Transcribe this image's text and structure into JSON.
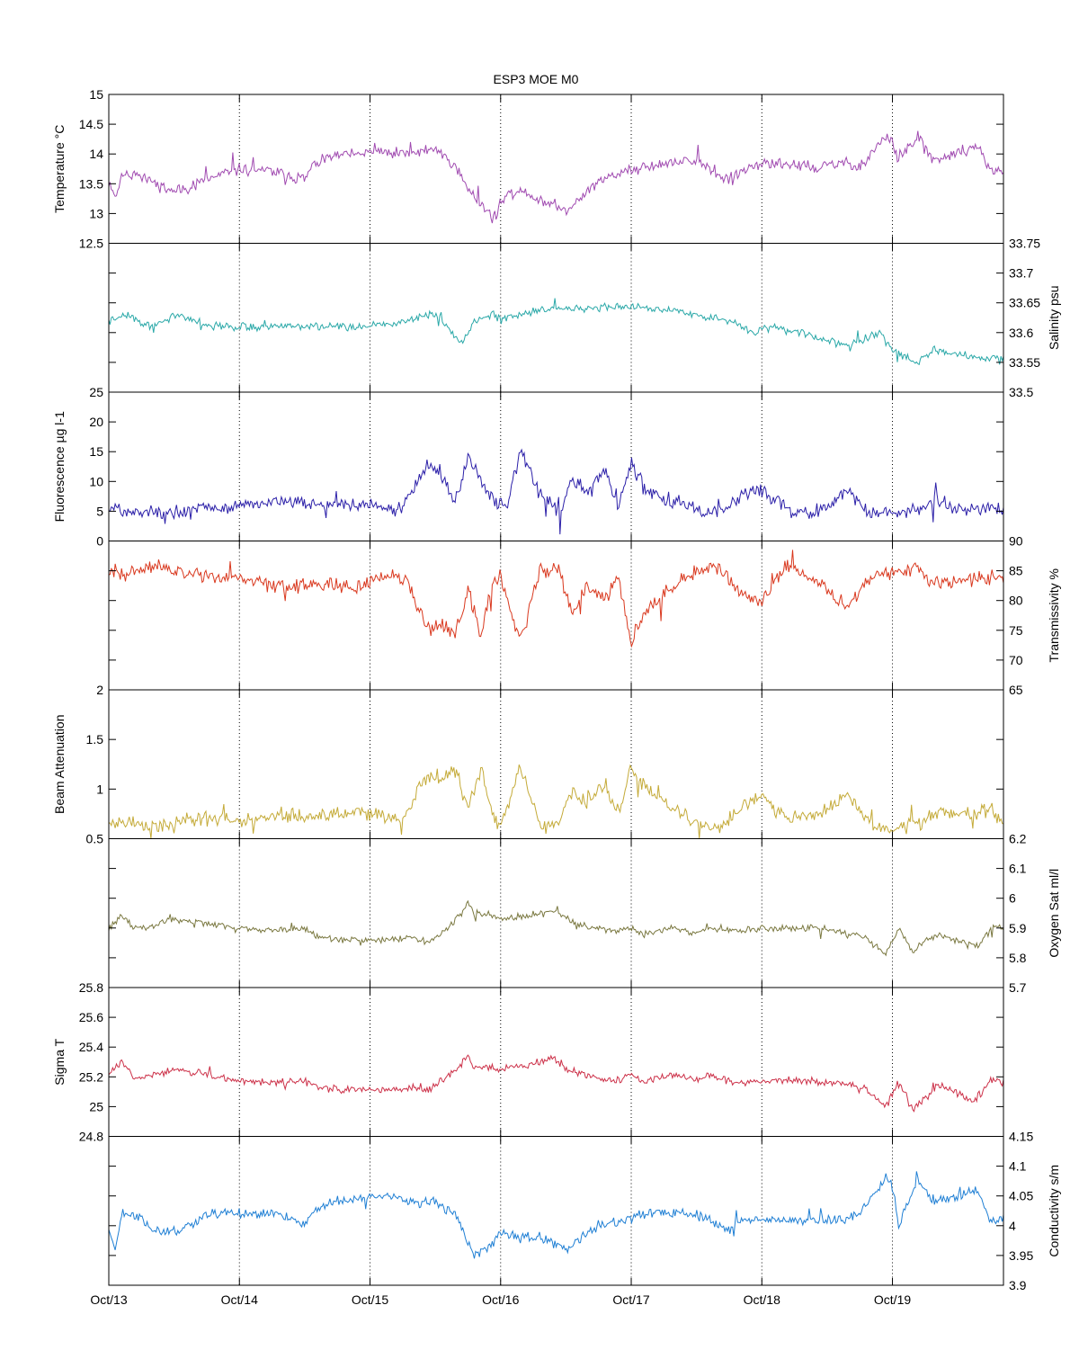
{
  "title": "ESP3 MOE   M0",
  "x_axis": {
    "ticks": [
      "Oct/13",
      "Oct/14",
      "Oct/15",
      "Oct/16",
      "Oct/17",
      "Oct/18",
      "Oct/19"
    ],
    "range_days": [
      0,
      6.85
    ]
  },
  "colors": {
    "temperature": "#a04ab0",
    "salinity": "#2aa8a8",
    "fluorescence": "#2b1fa8",
    "transmissivity": "#d9381e",
    "beam_attenuation": "#c4aa38",
    "oxygen": "#7a7840",
    "sigma_t": "#cc3048",
    "conductivity": "#1f7fd4"
  },
  "chart_data": [
    {
      "type": "line",
      "id": "temperature",
      "ylabel": "Temperature °C",
      "yaxis_side": "left",
      "ylim": [
        12.5,
        15
      ],
      "yticks": [
        "12.5",
        "13",
        "13.5",
        "14",
        "14.5",
        "15"
      ],
      "ytick_vals": [
        12.5,
        13,
        13.5,
        14,
        14.5,
        15
      ],
      "noise": 0.12,
      "seed": 11,
      "x": [
        0,
        0.05,
        0.1,
        0.2,
        0.35,
        0.5,
        0.8,
        1.0,
        1.3,
        1.5,
        1.55,
        1.7,
        2.0,
        2.15,
        2.3,
        2.5,
        2.65,
        2.75,
        2.8,
        2.95,
        3.0,
        3.15,
        3.3,
        3.5,
        3.75,
        3.95,
        4.1,
        4.35,
        4.5,
        4.75,
        4.85,
        5.0,
        5.2,
        5.4,
        5.6,
        5.75,
        5.95,
        6.0,
        6.05,
        6.2,
        6.3,
        6.35,
        6.65,
        6.75,
        6.85
      ],
      "y": [
        13.5,
        13.3,
        13.6,
        13.7,
        13.5,
        13.35,
        13.6,
        13.75,
        13.7,
        13.55,
        13.8,
        13.95,
        14.02,
        14.02,
        14.0,
        14.1,
        13.8,
        13.4,
        13.3,
        12.9,
        13.2,
        13.4,
        13.25,
        13.05,
        13.55,
        13.7,
        13.8,
        13.85,
        13.9,
        13.55,
        13.7,
        13.8,
        13.85,
        13.75,
        13.85,
        13.8,
        14.3,
        14.2,
        13.9,
        14.3,
        13.9,
        13.9,
        14.15,
        13.7,
        13.7
      ]
    },
    {
      "type": "line",
      "id": "salinity",
      "ylabel": "Salinity psu",
      "yaxis_side": "right",
      "ylim": [
        33.5,
        33.75
      ],
      "yticks": [
        "33.5",
        "33.55",
        "33.6",
        "33.65",
        "33.7",
        "33.75"
      ],
      "ytick_vals": [
        33.5,
        33.55,
        33.6,
        33.65,
        33.7,
        33.75
      ],
      "noise": 0.008,
      "seed": 22,
      "x": [
        0,
        0.15,
        0.3,
        0.55,
        0.8,
        1.0,
        1.5,
        2.0,
        2.3,
        2.4,
        2.5,
        2.6,
        2.7,
        2.8,
        2.95,
        3.0,
        3.3,
        3.6,
        4.0,
        4.2,
        4.5,
        4.6,
        4.8,
        4.9,
        5.1,
        5.3,
        5.6,
        5.75,
        5.9,
        6.0,
        6.2,
        6.3,
        6.6,
        6.7,
        6.85
      ],
      "y": [
        33.62,
        33.63,
        33.61,
        33.63,
        33.61,
        33.61,
        33.61,
        33.61,
        33.62,
        33.63,
        33.63,
        33.61,
        33.58,
        33.62,
        33.63,
        33.62,
        33.64,
        33.64,
        33.645,
        33.64,
        33.63,
        33.625,
        33.62,
        33.6,
        33.61,
        33.6,
        33.58,
        33.585,
        33.6,
        33.57,
        33.55,
        33.57,
        33.56,
        33.555,
        33.56
      ]
    },
    {
      "type": "line",
      "id": "fluorescence",
      "ylabel": "Fluorescence µg l-1",
      "yaxis_side": "left",
      "ylim": [
        0,
        25
      ],
      "yticks": [
        "0",
        "5",
        "10",
        "15",
        "20",
        "25"
      ],
      "ytick_vals": [
        0,
        5,
        10,
        15,
        20,
        25
      ],
      "noise": 1.4,
      "seed": 33,
      "x": [
        0,
        0.3,
        0.5,
        0.7,
        1.0,
        1.3,
        1.6,
        1.9,
        2.1,
        2.25,
        2.35,
        2.45,
        2.55,
        2.65,
        2.75,
        2.85,
        2.95,
        3.0,
        3.05,
        3.15,
        3.3,
        3.45,
        3.55,
        3.65,
        3.8,
        3.9,
        4.0,
        4.1,
        4.25,
        4.45,
        4.55,
        4.7,
        4.85,
        5.0,
        5.15,
        5.2,
        5.4,
        5.55,
        5.65,
        5.8,
        5.9,
        6.0,
        6.2,
        6.3,
        6.55,
        6.7,
        6.85
      ],
      "y": [
        5.5,
        5.0,
        4.5,
        5.5,
        6.0,
        6.5,
        6.0,
        6.2,
        5.5,
        5.5,
        9.5,
        13,
        11,
        6.0,
        14,
        10,
        7.0,
        6.0,
        6.0,
        15,
        8.0,
        5.0,
        11,
        8.0,
        12,
        6.0,
        13,
        9.0,
        7.0,
        6.0,
        4.5,
        5.0,
        8.0,
        8.5,
        6.5,
        5.0,
        5.0,
        6.5,
        8.5,
        5.0,
        4.5,
        4.5,
        5.0,
        7.0,
        5.0,
        5.5,
        5.0
      ]
    },
    {
      "type": "line",
      "id": "transmissivity",
      "ylabel": "Transmissivity %",
      "yaxis_side": "right",
      "ylim": [
        65,
        90
      ],
      "yticks": [
        "65",
        "70",
        "75",
        "80",
        "85",
        "90"
      ],
      "ytick_vals": [
        65,
        70,
        75,
        80,
        85,
        90
      ],
      "noise": 1.5,
      "seed": 44,
      "x": [
        0,
        0.2,
        0.4,
        0.6,
        0.8,
        1.0,
        1.3,
        1.6,
        1.9,
        2.1,
        2.25,
        2.35,
        2.45,
        2.55,
        2.65,
        2.75,
        2.85,
        2.95,
        3.0,
        3.05,
        3.15,
        3.3,
        3.45,
        3.55,
        3.65,
        3.8,
        3.9,
        4.0,
        4.1,
        4.3,
        4.5,
        4.65,
        4.75,
        4.85,
        5.0,
        5.2,
        5.4,
        5.55,
        5.65,
        5.8,
        5.9,
        6.0,
        6.2,
        6.3,
        6.6,
        6.75,
        6.85
      ],
      "y": [
        84,
        85,
        85.5,
        84.5,
        84,
        84,
        82,
        83,
        82,
        84,
        84,
        80,
        75,
        76,
        74,
        82,
        74,
        84,
        84,
        80,
        73,
        85,
        85,
        78,
        82,
        80,
        84,
        73,
        78,
        82,
        85,
        86,
        84,
        81,
        80,
        86,
        84,
        81,
        79,
        83,
        84.5,
        85,
        85.5,
        83,
        83.5,
        84,
        84
      ]
    },
    {
      "type": "line",
      "id": "beam_attenuation",
      "ylabel": "Beam Attenuation",
      "yaxis_side": "left",
      "ylim": [
        0.5,
        2
      ],
      "yticks": [
        "0.5",
        "1",
        "1.5",
        "2"
      ],
      "ytick_vals": [
        0.5,
        1,
        1.5,
        2
      ],
      "noise": 0.09,
      "seed": 55,
      "x": [
        0,
        0.2,
        0.4,
        0.6,
        0.8,
        1.0,
        1.3,
        1.6,
        1.9,
        2.1,
        2.25,
        2.35,
        2.45,
        2.55,
        2.65,
        2.75,
        2.85,
        2.95,
        3.0,
        3.05,
        3.15,
        3.3,
        3.45,
        3.55,
        3.65,
        3.8,
        3.9,
        4.0,
        4.05,
        4.15,
        4.3,
        4.5,
        4.65,
        4.75,
        4.85,
        5.0,
        5.2,
        5.4,
        5.55,
        5.65,
        5.8,
        5.9,
        6.0,
        6.2,
        6.3,
        6.6,
        6.75,
        6.85
      ],
      "y": [
        0.68,
        0.65,
        0.63,
        0.68,
        0.7,
        0.68,
        0.75,
        0.72,
        0.78,
        0.72,
        0.7,
        0.95,
        1.15,
        1.1,
        1.2,
        0.8,
        1.2,
        0.7,
        0.65,
        0.8,
        1.25,
        0.62,
        0.65,
        0.95,
        0.85,
        1.05,
        0.7,
        1.2,
        1.1,
        0.95,
        0.85,
        0.65,
        0.6,
        0.7,
        0.85,
        0.9,
        0.7,
        0.75,
        0.82,
        0.95,
        0.68,
        0.62,
        0.6,
        0.65,
        0.75,
        0.75,
        0.78,
        0.7
      ]
    },
    {
      "type": "line",
      "id": "oxygen",
      "ylabel": "Oxygen Sat ml/l",
      "yaxis_side": "right",
      "ylim": [
        5.7,
        6.2
      ],
      "yticks": [
        "5.7",
        "5.8",
        "5.9",
        "6",
        "6.1",
        "6.2"
      ],
      "ytick_vals": [
        5.7,
        5.8,
        5.9,
        6.0,
        6.1,
        6.2
      ],
      "noise": 0.013,
      "seed": 66,
      "x": [
        0,
        0.1,
        0.2,
        0.3,
        0.5,
        0.7,
        1.0,
        1.3,
        1.5,
        1.6,
        1.8,
        2.0,
        2.2,
        2.3,
        2.45,
        2.6,
        2.7,
        2.75,
        2.8,
        2.9,
        3.0,
        3.2,
        3.4,
        3.55,
        3.7,
        3.9,
        4.0,
        4.1,
        4.3,
        4.5,
        4.6,
        4.8,
        5.0,
        5.2,
        5.4,
        5.6,
        5.8,
        5.95,
        6.05,
        6.15,
        6.25,
        6.35,
        6.65,
        6.75,
        6.85
      ],
      "y": [
        5.9,
        5.94,
        5.9,
        5.9,
        5.93,
        5.92,
        5.9,
        5.89,
        5.9,
        5.87,
        5.86,
        5.86,
        5.86,
        5.87,
        5.85,
        5.9,
        5.95,
        5.99,
        5.95,
        5.95,
        5.93,
        5.94,
        5.96,
        5.92,
        5.9,
        5.89,
        5.9,
        5.88,
        5.9,
        5.88,
        5.9,
        5.89,
        5.9,
        5.9,
        5.9,
        5.89,
        5.87,
        5.81,
        5.9,
        5.82,
        5.86,
        5.88,
        5.84,
        5.9,
        5.9
      ]
    },
    {
      "type": "line",
      "id": "sigma_t",
      "ylabel": "Sigma T",
      "yaxis_side": "left",
      "ylim": [
        24.8,
        25.8
      ],
      "yticks": [
        "24.8",
        "25",
        "25.2",
        "25.4",
        "25.6",
        "25.8"
      ],
      "ytick_vals": [
        24.8,
        25.0,
        25.2,
        25.4,
        25.6,
        25.8
      ],
      "noise": 0.03,
      "seed": 77,
      "x": [
        0,
        0.1,
        0.2,
        0.3,
        0.5,
        0.7,
        1.0,
        1.3,
        1.5,
        1.6,
        1.8,
        2.0,
        2.2,
        2.3,
        2.45,
        2.6,
        2.7,
        2.75,
        2.8,
        2.9,
        3.0,
        3.2,
        3.4,
        3.55,
        3.7,
        3.9,
        4.0,
        4.1,
        4.3,
        4.5,
        4.6,
        4.8,
        5.0,
        5.2,
        5.4,
        5.6,
        5.8,
        5.95,
        6.05,
        6.15,
        6.25,
        6.35,
        6.65,
        6.75,
        6.85
      ],
      "y": [
        25.22,
        25.3,
        25.18,
        25.2,
        25.25,
        25.22,
        25.17,
        25.16,
        25.17,
        25.13,
        25.11,
        25.11,
        25.11,
        25.13,
        25.11,
        25.2,
        25.28,
        25.35,
        25.26,
        25.26,
        25.25,
        25.28,
        25.32,
        25.24,
        25.2,
        25.18,
        25.21,
        25.17,
        25.22,
        25.18,
        25.21,
        25.16,
        25.17,
        25.18,
        25.17,
        25.16,
        25.12,
        25.0,
        25.18,
        24.98,
        25.05,
        25.15,
        25.03,
        25.18,
        25.16
      ]
    },
    {
      "type": "line",
      "id": "conductivity",
      "ylabel": "Conductivity s/m",
      "yaxis_side": "right",
      "ylim": [
        3.9,
        4.15
      ],
      "yticks": [
        "3.9",
        "3.95",
        "4",
        "4.05",
        "4.1",
        "4.15"
      ],
      "ytick_vals": [
        3.9,
        3.95,
        4.0,
        4.05,
        4.1,
        4.15
      ],
      "noise": 0.01,
      "seed": 88,
      "x": [
        0,
        0.05,
        0.1,
        0.2,
        0.35,
        0.5,
        0.8,
        1.0,
        1.3,
        1.5,
        1.55,
        1.7,
        2.0,
        2.15,
        2.3,
        2.5,
        2.65,
        2.75,
        2.8,
        2.95,
        3.0,
        3.15,
        3.3,
        3.5,
        3.75,
        3.95,
        4.1,
        4.35,
        4.5,
        4.75,
        4.85,
        5.0,
        5.2,
        5.4,
        5.6,
        5.75,
        5.95,
        6.0,
        6.05,
        6.2,
        6.3,
        6.35,
        6.65,
        6.75,
        6.85
      ],
      "y": [
        4.0,
        3.96,
        4.02,
        4.02,
        3.99,
        3.99,
        4.02,
        4.02,
        4.02,
        4.0,
        4.02,
        4.04,
        4.05,
        4.05,
        4.04,
        4.04,
        4.02,
        3.97,
        3.95,
        3.97,
        3.99,
        3.98,
        3.98,
        3.96,
        4.0,
        4.01,
        4.02,
        4.02,
        4.02,
        3.99,
        4.01,
        4.01,
        4.01,
        4.01,
        4.01,
        4.02,
        4.08,
        4.07,
        4.0,
        4.08,
        4.04,
        4.04,
        4.06,
        4.01,
        4.01
      ]
    }
  ]
}
